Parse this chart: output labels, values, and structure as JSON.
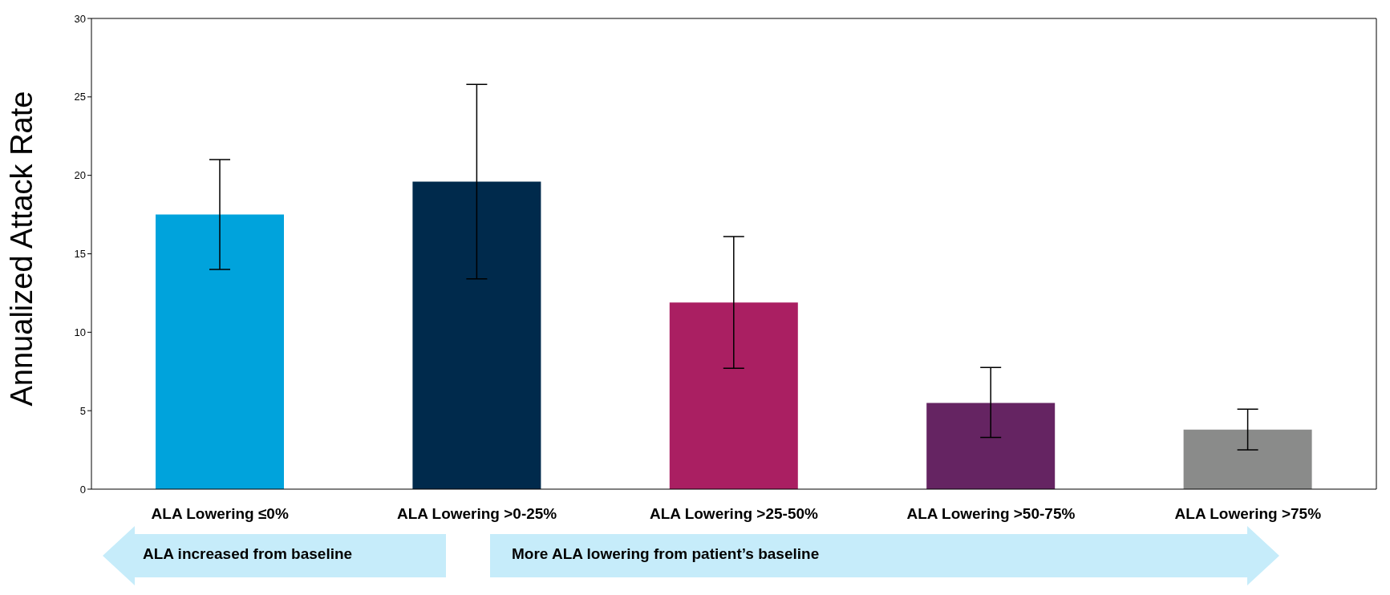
{
  "chart_data": {
    "type": "bar",
    "ylabel": "Annualized Attack Rate",
    "categories": [
      "ALA Lowering ≤0%",
      "ALA Lowering >0-25%",
      "ALA Lowering >25-50%",
      "ALA Lowering >50-75%",
      "ALA Lowering >75%"
    ],
    "values": [
      17.5,
      19.6,
      11.9,
      5.5,
      3.8
    ],
    "colors": [
      "#00a3dc",
      "#002a4c",
      "#aa1f62",
      "#652462",
      "#8a8b8a"
    ],
    "errors": [
      [
        14.0,
        21.0
      ],
      [
        13.4,
        25.8
      ],
      [
        7.7,
        16.1
      ],
      [
        3.3,
        7.75
      ],
      [
        2.5,
        5.1
      ]
    ],
    "ylim": [
      0,
      30
    ],
    "yticks": [
      0,
      5,
      10,
      15,
      20,
      25,
      30
    ],
    "grid": false,
    "legend": false,
    "annotations": [
      "ALA increased from baseline",
      "More ALA lowering from patient’s baseline"
    ]
  }
}
